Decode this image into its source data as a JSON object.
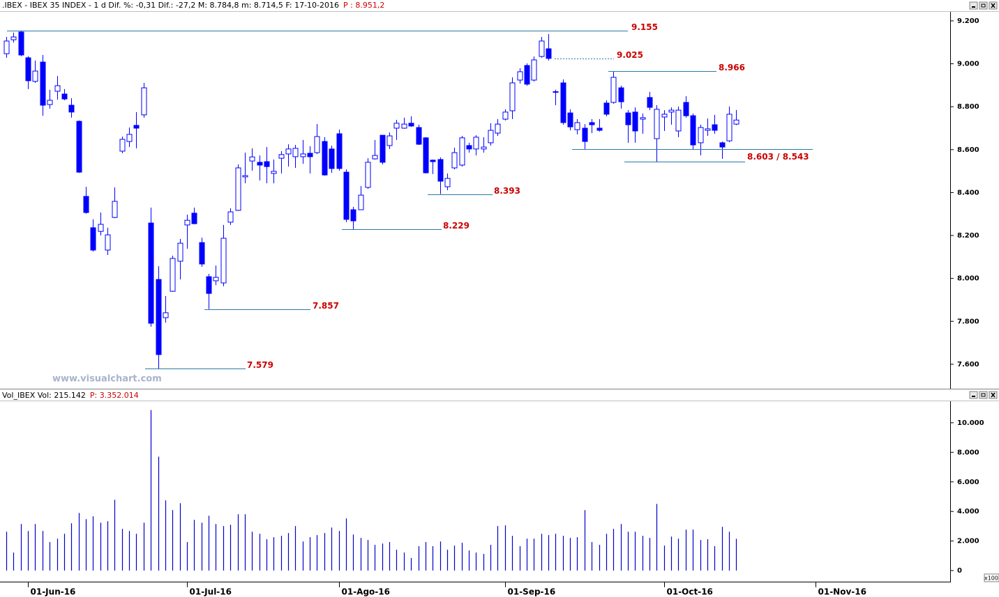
{
  "chart_data": [
    {
      "type": "candlestick",
      "title": ".IBEX - IBEX 35 INDEX - 1 d Dif. %: -0,31 Dif.: -27,2 M: 8.784,8 m: 8.714,5 F: 17-10-2016",
      "title_price": "P : 8.951,2",
      "watermark": "www.visualchart.com",
      "color": "#0000ff",
      "up_color": "#ffffff",
      "down_color": "#0000ff",
      "line_color": "#2b78a6",
      "ylim": [
        7486,
        9242
      ],
      "yticks": [
        {
          "value": 7600,
          "label": "7.600"
        },
        {
          "value": 7800,
          "label": "7.800"
        },
        {
          "value": 8000,
          "label": "8.000"
        },
        {
          "value": 8200,
          "label": "8.200"
        },
        {
          "value": 8400,
          "label": "8.400"
        },
        {
          "value": 8600,
          "label": "8.600"
        },
        {
          "value": 8800,
          "label": "8.800"
        },
        {
          "value": 9000,
          "label": "9.000"
        },
        {
          "value": 9200,
          "label": "9.200"
        }
      ],
      "open": [
        9047,
        9112,
        9148,
        9028,
        8918,
        9008,
        8810,
        8872,
        8859,
        8807,
        8732,
        8382,
        8236,
        8219,
        8132,
        8284,
        8593,
        8638,
        8713,
        8762,
        8258,
        7995,
        7817,
        7940,
        8080,
        8249,
        8304,
        8167,
        8008,
        7989,
        7979,
        8262,
        8317,
        8473,
        8547,
        8541,
        8544,
        8489,
        8560,
        8580,
        8567,
        8567,
        8583,
        8586,
        8638,
        8603,
        8674,
        8495,
        8320,
        8320,
        8424,
        8557,
        8667,
        8619,
        8700,
        8700,
        8723,
        8703,
        8655,
        8551,
        8554,
        8427,
        8515,
        8528,
        8619,
        8603,
        8603,
        8632,
        8677,
        8742,
        8781,
        8924,
        8992,
        8924,
        9034,
        9070,
        8870,
        8911,
        8771,
        8693,
        8700,
        8726,
        8700,
        8817,
        8820,
        8888,
        8771,
        8775,
        8742,
        8843,
        8651,
        8752,
        8775,
        8687,
        8820,
        8758,
        8632,
        8690,
        8716,
        8632,
        8641,
        8719
      ],
      "high": [
        9125,
        9145,
        9155,
        9035,
        9015,
        9041,
        8879,
        8943,
        8882,
        8840,
        8736,
        8427,
        8275,
        8307,
        8236,
        8424,
        8661,
        8703,
        8775,
        8911,
        8330,
        8057,
        7918,
        8106,
        8184,
        8297,
        8330,
        8190,
        8021,
        8060,
        8249,
        8327,
        8531,
        8586,
        8606,
        8573,
        8612,
        8554,
        8593,
        8625,
        8622,
        8645,
        8616,
        8719,
        8658,
        8619,
        8693,
        8508,
        8333,
        8430,
        8560,
        8645,
        8667,
        8680,
        8739,
        8749,
        8755,
        8716,
        8658,
        8554,
        8564,
        8489,
        8609,
        8664,
        8632,
        8667,
        8658,
        8723,
        8742,
        8788,
        8937,
        8979,
        9002,
        9034,
        9125,
        9138,
        8879,
        8927,
        8788,
        8742,
        8719,
        8742,
        8742,
        8830,
        8966,
        8898,
        8784,
        8797,
        8768,
        8869,
        8807,
        8784,
        8797,
        8801,
        8849,
        8768,
        8716,
        8745,
        8762,
        8638,
        8801,
        8784.8
      ],
      "low": [
        9028,
        9099,
        9035,
        8882,
        8911,
        8758,
        8791,
        8833,
        8830,
        8749,
        8492,
        8301,
        8125,
        8200,
        8109,
        8281,
        8583,
        8612,
        8606,
        8749,
        7775,
        7579,
        7794,
        7937,
        7995,
        8138,
        8252,
        8054,
        7857,
        7969,
        7963,
        8249,
        8314,
        8443,
        8502,
        8456,
        8443,
        8443,
        8489,
        8521,
        8515,
        8534,
        8489,
        8580,
        8479,
        8492,
        8502,
        8262,
        8229,
        8320,
        8417,
        8554,
        8531,
        8603,
        8645,
        8697,
        8706,
        8622,
        8489,
        8486,
        8393,
        8411,
        8508,
        8521,
        8586,
        8573,
        8586,
        8619,
        8664,
        8736,
        8742,
        8908,
        8898,
        8918,
        9028,
        9015,
        8807,
        8716,
        8690,
        8671,
        8603,
        8677,
        8684,
        8755,
        8814,
        8791,
        8632,
        8632,
        8674,
        8784,
        8543,
        8687,
        8716,
        8658,
        8749,
        8599,
        8573,
        8664,
        8674,
        8557,
        8635,
        8714.5
      ],
      "close": [
        9106,
        9125,
        9041,
        8921,
        8966,
        8807,
        8830,
        8898,
        8836,
        8775,
        8495,
        8307,
        8132,
        8252,
        8203,
        8359,
        8648,
        8671,
        8700,
        8888,
        7791,
        7645,
        7840,
        8093,
        8164,
        8271,
        8255,
        8067,
        7930,
        8005,
        8187,
        8310,
        8515,
        8479,
        8566,
        8528,
        8521,
        8499,
        8577,
        8603,
        8606,
        8580,
        8567,
        8661,
        8482,
        8512,
        8512,
        8275,
        8268,
        8388,
        8541,
        8573,
        8541,
        8664,
        8723,
        8719,
        8710,
        8625,
        8492,
        8544,
        8453,
        8466,
        8586,
        8655,
        8603,
        8658,
        8612,
        8690,
        8719,
        8775,
        8911,
        8963,
        8905,
        9018,
        9106,
        9025,
        8868,
        8726,
        8706,
        8726,
        8638,
        8716,
        8690,
        8765,
        8937,
        8823,
        8716,
        8687,
        8749,
        8797,
        8788,
        8765,
        8784,
        8784,
        8758,
        8622,
        8703,
        8697,
        8690,
        8612,
        8765,
        8737.8
      ],
      "annotations": [
        {
          "label": "9.155",
          "value": 9155
        },
        {
          "label": "9.025",
          "value": 9025,
          "dashed": true
        },
        {
          "label": "8.966",
          "value": 8966
        },
        {
          "label": "8.603 / 8.543",
          "values": [
            8603,
            8543
          ]
        },
        {
          "label": "8.393",
          "value": 8393
        },
        {
          "label": "8.229",
          "value": 8229
        },
        {
          "label": "7.857",
          "value": 7857
        },
        {
          "label": "7.579",
          "value": 7579
        }
      ]
    },
    {
      "type": "bar",
      "title": "Vol_IBEX Vol: 215.142",
      "title_price": "P: 3.352.014",
      "unit_note": "x100",
      "color": "#0000cc",
      "ylim": [
        -751,
        11455
      ],
      "yticks": [
        0,
        {
          "value": 2000,
          "label": "2.000"
        },
        {
          "value": 4000,
          "label": "4.000"
        },
        {
          "value": 6000,
          "label": "6.000"
        },
        {
          "value": 8000,
          "label": "8.000"
        },
        {
          "value": 10000,
          "label": "10.000"
        }
      ],
      "categories": [
        null,
        null,
        null,
        "01-Jun-16",
        null,
        null,
        null,
        null,
        null,
        null,
        null,
        null,
        null,
        null,
        null,
        null,
        null,
        null,
        null,
        null,
        null,
        null,
        null,
        null,
        null,
        "01-Jul-16",
        null,
        null,
        null,
        null,
        null,
        null,
        null,
        null,
        null,
        null,
        null,
        null,
        null,
        null,
        null,
        null,
        null,
        null,
        null,
        null,
        "01-Ago-16",
        null,
        null,
        null,
        null,
        null,
        null,
        null,
        null,
        null,
        null,
        null,
        null,
        null,
        null,
        null,
        null,
        null,
        null,
        null,
        null,
        null,
        null,
        "01-Sep-16",
        null,
        null,
        null,
        null,
        null,
        null,
        null,
        null,
        null,
        null,
        null,
        null,
        null,
        null,
        null,
        null,
        null,
        null,
        null,
        null,
        null,
        "01-Oct-16",
        null,
        null,
        null,
        null,
        null,
        null,
        null,
        null,
        null,
        null,
        null,
        null,
        null,
        null,
        null,
        null,
        null,
        null,
        null,
        null,
        "01-Nov-16"
      ],
      "values": [
        2630,
        1220,
        3150,
        2680,
        3150,
        2680,
        1930,
        2160,
        2490,
        3200,
        3900,
        3480,
        3670,
        3240,
        3340,
        4790,
        2820,
        2680,
        2490,
        3240,
        10860,
        7710,
        4750,
        4090,
        4560,
        1930,
        3430,
        3240,
        3710,
        3150,
        3010,
        3100,
        3810,
        3810,
        2630,
        2490,
        2120,
        2260,
        2350,
        2540,
        3010,
        1970,
        2260,
        2400,
        2540,
        2910,
        2680,
        3530,
        2440,
        2210,
        2070,
        1740,
        1830,
        1930,
        1410,
        1220,
        850,
        1650,
        1930,
        1650,
        1970,
        1410,
        1690,
        1880,
        1360,
        1220,
        1130,
        1740,
        3010,
        3060,
        2350,
        1650,
        2160,
        2160,
        2490,
        2400,
        2490,
        2350,
        2210,
        2260,
        4090,
        1930,
        1740,
        2490,
        2820,
        3150,
        2630,
        2630,
        2350,
        2210,
        4510,
        1690,
        2300,
        2160,
        2770,
        2770,
        2070,
        2120,
        1650,
        2960,
        2630,
        2151.42,
        null,
        null,
        null,
        null,
        null,
        null,
        null,
        null,
        null,
        null,
        null
      ]
    }
  ]
}
